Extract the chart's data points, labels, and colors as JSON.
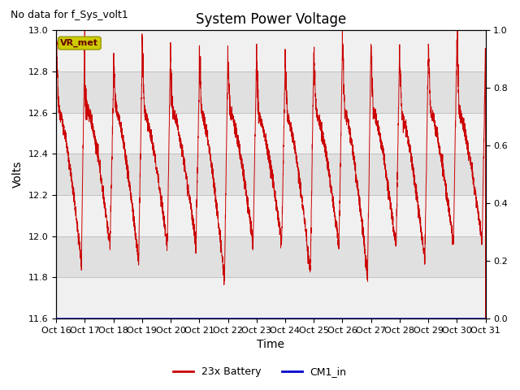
{
  "title": "System Power Voltage",
  "subtitle": "No data for f_Sys_volt1",
  "ylabel_left": "Volts",
  "xlabel": "Time",
  "ylim_left": [
    11.6,
    13.0
  ],
  "ylim_right": [
    0.0,
    1.0
  ],
  "x_tick_labels": [
    "Oct 16",
    "Oct 17",
    "Oct 18",
    "Oct 19",
    "Oct 20",
    "Oct 21",
    "Oct 22",
    "Oct 23",
    "Oct 24",
    "Oct 25",
    "Oct 26",
    "Oct 27",
    "Oct 28",
    "Oct 29",
    "Oct 30",
    "Oct 31"
  ],
  "yticks_left": [
    11.6,
    11.8,
    12.0,
    12.2,
    12.4,
    12.6,
    12.8,
    13.0
  ],
  "yticks_right": [
    0.0,
    0.2,
    0.4,
    0.6,
    0.8,
    1.0
  ],
  "legend_entries": [
    "23x Battery",
    "CM1_in"
  ],
  "legend_colors": [
    "#cc0000",
    "#0000cc"
  ],
  "vr_met_label": "VR_met",
  "vr_met_facecolor": "#cccc00",
  "vr_met_edgecolor": "#999900",
  "battery_line_color": "#cc0000",
  "cm1_line_color": "#0000cc",
  "grid_color": "#bbbbbb",
  "plot_bg": "#e8e8e8",
  "band_color_light": "#e0e0e0",
  "band_color_white": "#f0f0f0",
  "title_fontsize": 12,
  "label_fontsize": 10,
  "tick_fontsize": 8,
  "subtitle_fontsize": 9
}
